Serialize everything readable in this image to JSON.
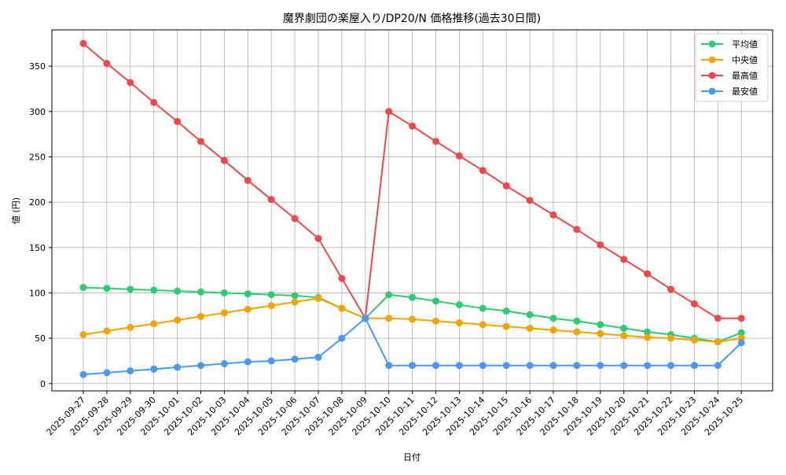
{
  "chart_data": {
    "type": "line",
    "title": "魔界劇団の楽屋入り/DP20/N 価格推移(過去30日間)",
    "xlabel": "日付",
    "ylabel": "値 (円)",
    "ylim": [
      -8,
      390
    ],
    "yticks": [
      0,
      50,
      100,
      150,
      200,
      250,
      300,
      350
    ],
    "grid": true,
    "legend_position": "top-right",
    "categories": [
      "2025-09-27",
      "2025-09-28",
      "2025-09-29",
      "2025-09-30",
      "2025-10-01",
      "2025-10-02",
      "2025-10-03",
      "2025-10-04",
      "2025-10-05",
      "2025-10-06",
      "2025-10-07",
      "2025-10-08",
      "2025-10-09",
      "2025-10-10",
      "2025-10-11",
      "2025-10-12",
      "2025-10-13",
      "2025-10-14",
      "2025-10-15",
      "2025-10-16",
      "2025-10-17",
      "2025-10-18",
      "2025-10-19",
      "2025-10-20",
      "2025-10-21",
      "2025-10-22",
      "2025-10-23",
      "2025-10-24",
      "2025-10-25"
    ],
    "series": [
      {
        "name": "平均値",
        "color": "#2ecc71",
        "values": [
          106,
          105,
          104,
          103,
          102,
          101,
          100,
          99,
          98,
          97,
          95,
          83,
          72,
          98,
          95,
          91,
          87,
          83,
          80,
          76,
          72,
          69,
          65,
          61,
          57,
          54,
          50,
          46,
          56
        ]
      },
      {
        "name": "中央値",
        "color": "#f5a300",
        "values": [
          54,
          58,
          62,
          66,
          70,
          74,
          78,
          82,
          86,
          90,
          94,
          83,
          72,
          72,
          71,
          69,
          67,
          65,
          63,
          61,
          59,
          57,
          55,
          53,
          51,
          50,
          48,
          46,
          50
        ]
      },
      {
        "name": "最高値",
        "color": "#f04848",
        "values": [
          375,
          353,
          332,
          310,
          289,
          267,
          246,
          224,
          203,
          182,
          160,
          116,
          72,
          300,
          284,
          267,
          251,
          235,
          218,
          202,
          186,
          170,
          153,
          137,
          121,
          104,
          88,
          72,
          72
        ]
      },
      {
        "name": "最安値",
        "color": "#4a98f7",
        "values": [
          10,
          12,
          14,
          16,
          18,
          20,
          22,
          24,
          25,
          27,
          29,
          50,
          72,
          20,
          20,
          20,
          20,
          20,
          20,
          20,
          20,
          20,
          20,
          20,
          20,
          20,
          20,
          20,
          45
        ]
      }
    ]
  }
}
